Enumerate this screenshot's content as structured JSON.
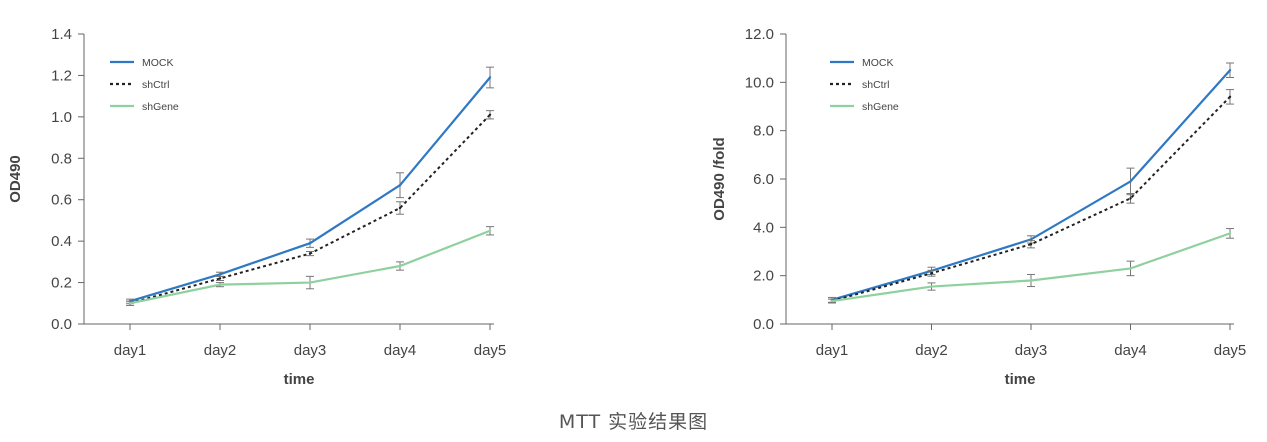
{
  "caption": "MTT 实验结果图",
  "colors": {
    "mock": "#2f78c4",
    "shctrl": "#222222",
    "shgene": "#8fd19e",
    "axis": "#666666",
    "errorbar": "#777777"
  },
  "chart_data": [
    {
      "type": "line",
      "categories": [
        "day1",
        "day2",
        "day3",
        "day4",
        "day5"
      ],
      "xlabel": "time",
      "ylabel": "OD490",
      "ylim": [
        0,
        1.4
      ],
      "yticks": [
        "0.0",
        "0.2",
        "0.4",
        "0.6",
        "0.8",
        "1.0",
        "1.2",
        "1.4"
      ],
      "legend_position": "top-left",
      "grid": false,
      "series": [
        {
          "name": "MOCK",
          "style": "solid",
          "color": "#2f78c4",
          "values": [
            0.11,
            0.24,
            0.39,
            0.67,
            1.19
          ],
          "errors": [
            0.01,
            0.01,
            0.02,
            0.06,
            0.05
          ]
        },
        {
          "name": "shCtrl",
          "style": "dotted",
          "color": "#222222",
          "values": [
            0.1,
            0.22,
            0.34,
            0.56,
            1.01
          ],
          "errors": [
            0.01,
            0.01,
            0.01,
            0.03,
            0.02
          ]
        },
        {
          "name": "shGene",
          "style": "solid",
          "color": "#8fd19e",
          "values": [
            0.1,
            0.19,
            0.2,
            0.28,
            0.45
          ],
          "errors": [
            0.01,
            0.01,
            0.03,
            0.02,
            0.02
          ]
        }
      ]
    },
    {
      "type": "line",
      "categories": [
        "day1",
        "day2",
        "day3",
        "day4",
        "day5"
      ],
      "xlabel": "time",
      "ylabel": "OD490 /fold",
      "ylim": [
        0,
        12
      ],
      "yticks": [
        "0.0",
        "2.0",
        "4.0",
        "6.0",
        "8.0",
        "10.0",
        "12.0"
      ],
      "legend_position": "top-left",
      "grid": false,
      "series": [
        {
          "name": "MOCK",
          "style": "solid",
          "color": "#2f78c4",
          "values": [
            1.0,
            2.2,
            3.5,
            5.9,
            10.5
          ],
          "errors": [
            0.1,
            0.15,
            0.15,
            0.55,
            0.3
          ]
        },
        {
          "name": "shCtrl",
          "style": "dotted",
          "color": "#222222",
          "values": [
            0.95,
            2.1,
            3.3,
            5.2,
            9.4
          ],
          "errors": [
            0.08,
            0.12,
            0.15,
            0.2,
            0.3
          ]
        },
        {
          "name": "shGene",
          "style": "solid",
          "color": "#8fd19e",
          "values": [
            0.95,
            1.55,
            1.8,
            2.3,
            3.75
          ],
          "errors": [
            0.08,
            0.15,
            0.25,
            0.3,
            0.2
          ]
        }
      ]
    }
  ]
}
